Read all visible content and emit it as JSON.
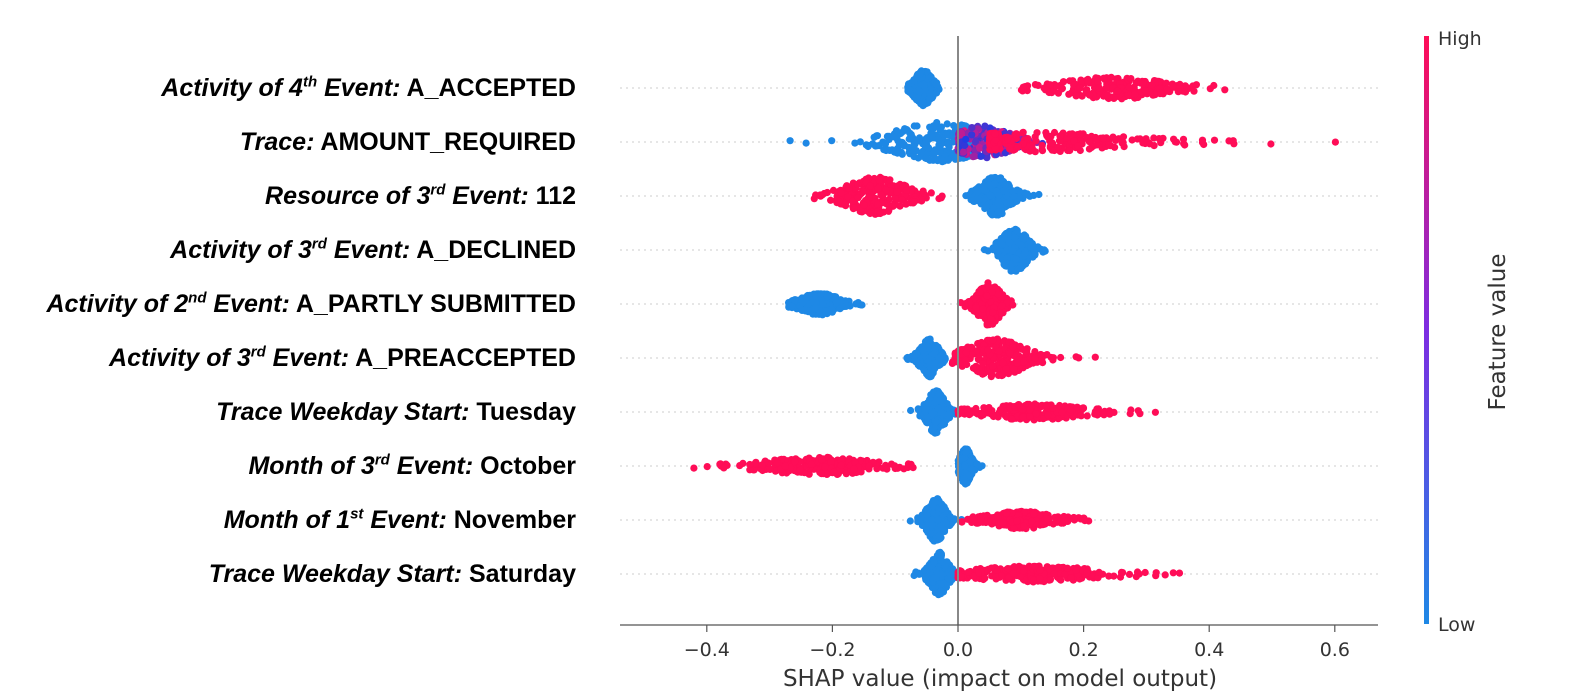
{
  "chart_data": {
    "type": "scatter",
    "subtype": "shap-beeswarm",
    "xlabel": "SHAP value (impact on model output)",
    "xlim": [
      -0.54,
      0.67
    ],
    "xticks": [
      "−0.4",
      "−0.2",
      "0.0",
      "0.2",
      "0.4",
      "0.6"
    ],
    "xtick_values": [
      -0.4,
      -0.2,
      0.0,
      0.2,
      0.4,
      0.6
    ],
    "colorbar": {
      "title": "Feature value",
      "high": "High",
      "low": "Low",
      "low_color": "#1e88e5",
      "high_color": "#ff0d57"
    },
    "features": [
      {
        "prefix": "Activity of 4",
        "sup": "th",
        "suffix": " Event:",
        "value": " A_ACCEPTED",
        "clusters": [
          {
            "color": "low",
            "min": -0.08,
            "max": -0.03,
            "center": -0.055,
            "spread": 0.012,
            "width": 0.8
          },
          {
            "color": "high",
            "min": 0.1,
            "max": 0.43,
            "center": 0.25,
            "spread": 0.07,
            "width": 0.45
          }
        ]
      },
      {
        "prefix": "Trace:",
        "sup": "",
        "suffix": "",
        "value": " AMOUNT_REQUIRED",
        "clusters": [
          {
            "color": "low",
            "min": -0.28,
            "max": 0.02,
            "center": -0.03,
            "spread": 0.06,
            "width": 0.9
          },
          {
            "color": "mixed",
            "min": 0.0,
            "max": 0.14,
            "center": 0.04,
            "spread": 0.04,
            "width": 0.7
          },
          {
            "color": "high",
            "min": 0.05,
            "max": 0.61,
            "center": 0.12,
            "spread": 0.12,
            "width": 0.4
          }
        ]
      },
      {
        "prefix": "Resource of 3",
        "sup": "rd",
        "suffix": " Event:",
        "value": " 112",
        "clusters": [
          {
            "color": "high",
            "min": -0.23,
            "max": -0.02,
            "center": -0.13,
            "spread": 0.04,
            "width": 0.85
          },
          {
            "color": "low",
            "min": 0.01,
            "max": 0.13,
            "center": 0.06,
            "spread": 0.02,
            "width": 0.9
          }
        ]
      },
      {
        "prefix": "Activity of 3",
        "sup": "rd",
        "suffix": " Event:",
        "value": " A_DECLINED",
        "clusters": [
          {
            "color": "low",
            "min": 0.04,
            "max": 0.15,
            "center": 0.09,
            "spread": 0.018,
            "width": 1.0
          }
        ]
      },
      {
        "prefix": "Activity of 2",
        "sup": "nd",
        "suffix": " Event:",
        "value": " A_PARTLY SUBMITTED",
        "clusters": [
          {
            "color": "low",
            "min": -0.27,
            "max": -0.15,
            "center": -0.22,
            "spread": 0.025,
            "width": 0.45
          },
          {
            "color": "high",
            "min": -0.01,
            "max": 0.11,
            "center": 0.05,
            "spread": 0.015,
            "width": 1.0
          }
        ]
      },
      {
        "prefix": "Activity of 3",
        "sup": "rd",
        "suffix": " Event:",
        "value": " A_PREACCEPTED",
        "clusters": [
          {
            "color": "low",
            "min": -0.09,
            "max": -0.02,
            "center": -0.045,
            "spread": 0.012,
            "width": 0.85
          },
          {
            "color": "high",
            "min": -0.01,
            "max": 0.23,
            "center": 0.06,
            "spread": 0.04,
            "width": 0.85
          }
        ]
      },
      {
        "prefix": "Trace Weekday Start:",
        "sup": "",
        "suffix": "",
        "value": " Tuesday",
        "clusters": [
          {
            "color": "low",
            "min": -0.08,
            "max": 0.01,
            "center": -0.035,
            "spread": 0.012,
            "width": 1.0
          },
          {
            "color": "high",
            "min": 0.0,
            "max": 0.32,
            "center": 0.12,
            "spread": 0.06,
            "width": 0.3
          }
        ]
      },
      {
        "prefix": "Month of 3",
        "sup": "rd",
        "suffix": " Event:",
        "value": " October",
        "clusters": [
          {
            "color": "high",
            "min": -0.48,
            "max": -0.07,
            "center": -0.22,
            "spread": 0.07,
            "width": 0.35
          },
          {
            "color": "low",
            "min": -0.0,
            "max": 0.04,
            "center": 0.012,
            "spread": 0.008,
            "width": 0.8
          }
        ]
      },
      {
        "prefix": "Month of 1",
        "sup": "st",
        "suffix": " Event:",
        "value": " November",
        "clusters": [
          {
            "color": "low",
            "min": -0.08,
            "max": 0.01,
            "center": -0.035,
            "spread": 0.012,
            "width": 1.0
          },
          {
            "color": "high",
            "min": 0.0,
            "max": 0.21,
            "center": 0.1,
            "spread": 0.04,
            "width": 0.35
          }
        ]
      },
      {
        "prefix": "Trace Weekday Start:",
        "sup": "",
        "suffix": "",
        "value": " Saturday",
        "clusters": [
          {
            "color": "low",
            "min": -0.07,
            "max": 0.01,
            "center": -0.03,
            "spread": 0.012,
            "width": 1.0
          },
          {
            "color": "high",
            "min": 0.0,
            "max": 0.36,
            "center": 0.12,
            "spread": 0.08,
            "width": 0.3
          }
        ]
      }
    ]
  }
}
